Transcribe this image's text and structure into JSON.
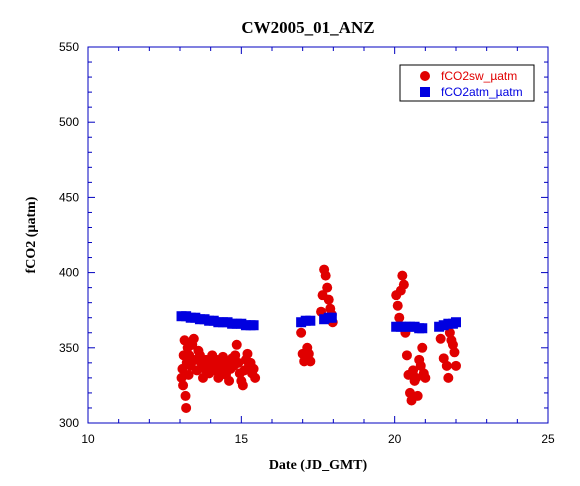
{
  "chart_data": {
    "type": "scatter",
    "title": "CW2005_01_ANZ",
    "xlabel": "Date (JD_GMT)",
    "ylabel": "fCO2 (µatm)",
    "xlim": [
      10,
      25
    ],
    "ylim": [
      300,
      550
    ],
    "xticks": [
      10,
      15,
      20,
      25
    ],
    "yticks": [
      300,
      350,
      400,
      450,
      500,
      550
    ],
    "legend_position": "top-right",
    "grid": false,
    "series": [
      {
        "name": "fCO2sw_µatm",
        "color": "#e00000",
        "marker": "circle",
        "points": [
          [
            13.05,
            330
          ],
          [
            13.08,
            336
          ],
          [
            13.1,
            325
          ],
          [
            13.12,
            345
          ],
          [
            13.15,
            355
          ],
          [
            13.18,
            318
          ],
          [
            13.2,
            310
          ],
          [
            13.22,
            340
          ],
          [
            13.25,
            350
          ],
          [
            13.28,
            332
          ],
          [
            13.3,
            345
          ],
          [
            13.35,
            338
          ],
          [
            13.4,
            352
          ],
          [
            13.45,
            356
          ],
          [
            13.5,
            342
          ],
          [
            13.55,
            335
          ],
          [
            13.6,
            348
          ],
          [
            13.65,
            345
          ],
          [
            13.7,
            340
          ],
          [
            13.75,
            330
          ],
          [
            13.8,
            336
          ],
          [
            13.85,
            342
          ],
          [
            13.9,
            338
          ],
          [
            13.95,
            333
          ],
          [
            14.0,
            340
          ],
          [
            14.05,
            345
          ],
          [
            14.1,
            338
          ],
          [
            14.15,
            335
          ],
          [
            14.2,
            342
          ],
          [
            14.25,
            330
          ],
          [
            14.3,
            340
          ],
          [
            14.35,
            334
          ],
          [
            14.4,
            344
          ],
          [
            14.45,
            338
          ],
          [
            14.5,
            332
          ],
          [
            14.55,
            340
          ],
          [
            14.6,
            328
          ],
          [
            14.65,
            336
          ],
          [
            14.7,
            343
          ],
          [
            14.75,
            338
          ],
          [
            14.8,
            345
          ],
          [
            14.85,
            352
          ],
          [
            14.9,
            340
          ],
          [
            14.95,
            333
          ],
          [
            15.0,
            328
          ],
          [
            15.05,
            325
          ],
          [
            15.1,
            335
          ],
          [
            15.15,
            342
          ],
          [
            15.2,
            346
          ],
          [
            15.25,
            338
          ],
          [
            15.3,
            340
          ],
          [
            15.35,
            333
          ],
          [
            15.4,
            336
          ],
          [
            15.45,
            330
          ],
          [
            16.95,
            360
          ],
          [
            17.0,
            346
          ],
          [
            17.05,
            341
          ],
          [
            17.1,
            343
          ],
          [
            17.15,
            350
          ],
          [
            17.2,
            346
          ],
          [
            17.25,
            341
          ],
          [
            17.6,
            374
          ],
          [
            17.65,
            385
          ],
          [
            17.7,
            402
          ],
          [
            17.75,
            398
          ],
          [
            17.8,
            390
          ],
          [
            17.85,
            382
          ],
          [
            17.9,
            376
          ],
          [
            17.95,
            372
          ],
          [
            17.98,
            367
          ],
          [
            20.05,
            385
          ],
          [
            20.1,
            378
          ],
          [
            20.15,
            370
          ],
          [
            20.2,
            388
          ],
          [
            20.25,
            398
          ],
          [
            20.3,
            392
          ],
          [
            20.35,
            360
          ],
          [
            20.4,
            345
          ],
          [
            20.45,
            332
          ],
          [
            20.5,
            320
          ],
          [
            20.55,
            315
          ],
          [
            20.6,
            335
          ],
          [
            20.65,
            328
          ],
          [
            20.7,
            330
          ],
          [
            20.75,
            318
          ],
          [
            20.8,
            342
          ],
          [
            20.85,
            338
          ],
          [
            20.9,
            350
          ],
          [
            20.95,
            333
          ],
          [
            21.0,
            330
          ],
          [
            21.5,
            356
          ],
          [
            21.6,
            343
          ],
          [
            21.7,
            338
          ],
          [
            21.75,
            330
          ],
          [
            21.8,
            360
          ],
          [
            21.85,
            355
          ],
          [
            21.9,
            352
          ],
          [
            21.95,
            347
          ],
          [
            22.0,
            338
          ]
        ]
      },
      {
        "name": "fCO2atm_µatm",
        "color": "#0000e0",
        "marker": "square",
        "points": [
          [
            13.05,
            371
          ],
          [
            13.2,
            371
          ],
          [
            13.35,
            370
          ],
          [
            13.5,
            370
          ],
          [
            13.65,
            369
          ],
          [
            13.8,
            369
          ],
          [
            13.95,
            368
          ],
          [
            14.1,
            368
          ],
          [
            14.25,
            367
          ],
          [
            14.4,
            367
          ],
          [
            14.55,
            367
          ],
          [
            14.7,
            366
          ],
          [
            14.85,
            366
          ],
          [
            15.0,
            366
          ],
          [
            15.15,
            365
          ],
          [
            15.3,
            365
          ],
          [
            15.4,
            365
          ],
          [
            16.95,
            367
          ],
          [
            17.1,
            368
          ],
          [
            17.25,
            368
          ],
          [
            17.7,
            369
          ],
          [
            17.85,
            370
          ],
          [
            17.95,
            370
          ],
          [
            20.05,
            364
          ],
          [
            20.2,
            364
          ],
          [
            20.35,
            364
          ],
          [
            20.5,
            364
          ],
          [
            20.65,
            364
          ],
          [
            20.8,
            363
          ],
          [
            20.9,
            363
          ],
          [
            21.45,
            364
          ],
          [
            21.6,
            365
          ],
          [
            21.75,
            366
          ],
          [
            21.9,
            366
          ],
          [
            22.0,
            367
          ]
        ]
      }
    ]
  }
}
